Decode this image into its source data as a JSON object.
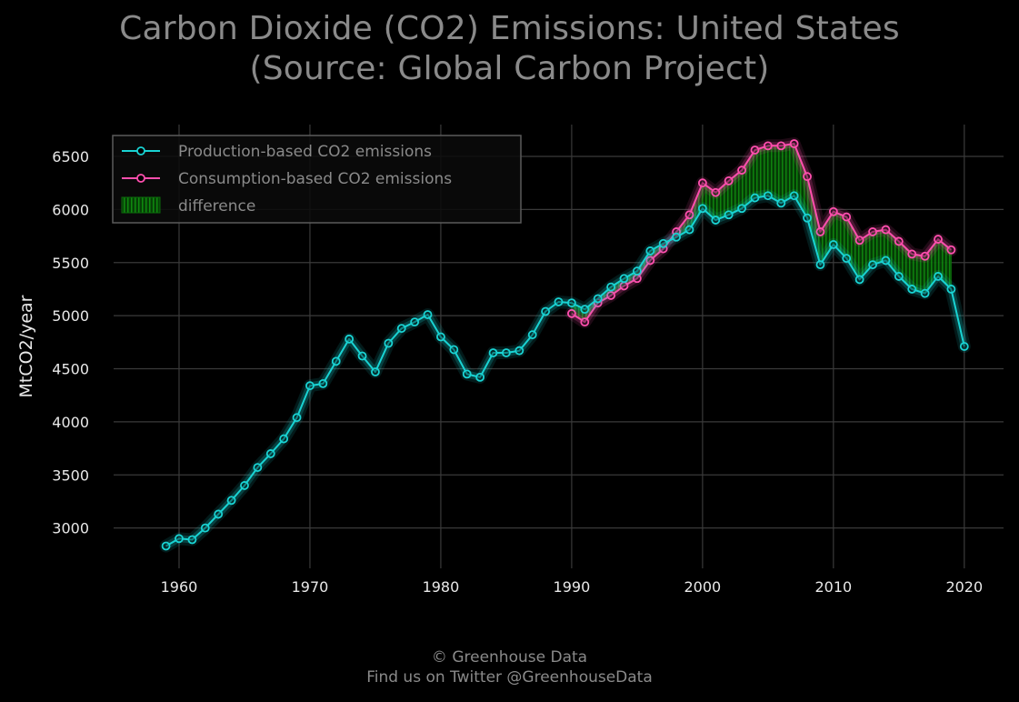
{
  "title": {
    "line1": "Carbon Dioxide (CO2) Emissions: United States",
    "line2": "(Source: Global Carbon Project)"
  },
  "footer": {
    "line1": "© Greenhouse Data",
    "line2": "Find us on Twitter @GreenhouseData"
  },
  "colors": {
    "background": "#000000",
    "grid": "#3a3a3a",
    "production": "#19d3d3",
    "consumption": "#ff4fae",
    "difference": "#0b6b0b",
    "text": "#e8e8e8",
    "muted": "#8a8a8a"
  },
  "chart_data": {
    "type": "line",
    "ylabel": "MtCO2/year",
    "xlabel": "",
    "xlim": [
      1955,
      2023
    ],
    "ylim": [
      2620,
      6800
    ],
    "x_ticks": [
      1960,
      1970,
      1980,
      1990,
      2000,
      2010,
      2020
    ],
    "y_ticks": [
      3000,
      3500,
      4000,
      4500,
      5000,
      5500,
      6000,
      6500
    ],
    "grid": true,
    "legend_position": "top-left",
    "series": [
      {
        "name": "Production-based CO2 emissions",
        "x": [
          1959,
          1960,
          1961,
          1962,
          1963,
          1964,
          1965,
          1966,
          1967,
          1968,
          1969,
          1970,
          1971,
          1972,
          1973,
          1974,
          1975,
          1976,
          1977,
          1978,
          1979,
          1980,
          1981,
          1982,
          1983,
          1984,
          1985,
          1986,
          1987,
          1988,
          1989,
          1990,
          1991,
          1992,
          1993,
          1994,
          1995,
          1996,
          1997,
          1998,
          1999,
          2000,
          2001,
          2002,
          2003,
          2004,
          2005,
          2006,
          2007,
          2008,
          2009,
          2010,
          2011,
          2012,
          2013,
          2014,
          2015,
          2016,
          2017,
          2018,
          2019,
          2020
        ],
        "values": [
          2830,
          2900,
          2890,
          3000,
          3130,
          3260,
          3400,
          3570,
          3700,
          3840,
          4040,
          4340,
          4360,
          4570,
          4780,
          4620,
          4470,
          4740,
          4880,
          4940,
          5010,
          4800,
          4680,
          4450,
          4420,
          4650,
          4650,
          4670,
          4820,
          5040,
          5130,
          5120,
          5060,
          5160,
          5270,
          5350,
          5420,
          5610,
          5680,
          5740,
          5810,
          6010,
          5900,
          5950,
          6010,
          6110,
          6130,
          6060,
          6130,
          5920,
          5480,
          5670,
          5540,
          5340,
          5480,
          5520,
          5370,
          5250,
          5210,
          5370,
          5250,
          4710
        ]
      },
      {
        "name": "Consumption-based CO2 emissions",
        "x": [
          1990,
          1991,
          1992,
          1993,
          1994,
          1995,
          1996,
          1997,
          1998,
          1999,
          2000,
          2001,
          2002,
          2003,
          2004,
          2005,
          2006,
          2007,
          2008,
          2009,
          2010,
          2011,
          2012,
          2013,
          2014,
          2015,
          2016,
          2017,
          2018,
          2019
        ],
        "values": [
          5020,
          4940,
          5120,
          5190,
          5280,
          5350,
          5520,
          5630,
          5790,
          5950,
          6250,
          6160,
          6270,
          6370,
          6560,
          6600,
          6600,
          6620,
          6310,
          5790,
          5980,
          5930,
          5710,
          5790,
          5810,
          5700,
          5580,
          5560,
          5720,
          5620
        ]
      }
    ],
    "fill_between": {
      "name": "difference",
      "between": [
        "Consumption-based CO2 emissions",
        "Production-based CO2 emissions"
      ]
    }
  }
}
